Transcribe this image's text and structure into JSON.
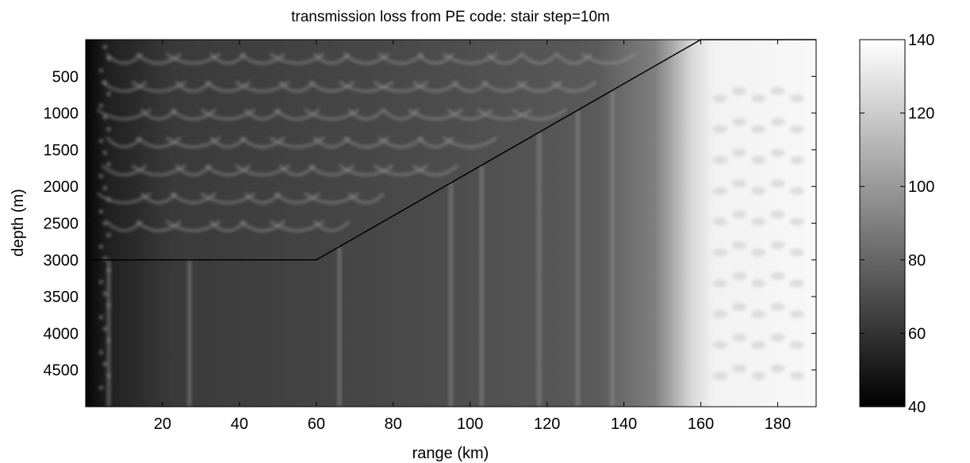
{
  "chart_data": {
    "type": "heatmap",
    "title": "transmission loss from PE code: stair step=10m",
    "xlabel": "range (km)",
    "ylabel": "depth (m)",
    "xlim": [
      0,
      190
    ],
    "ylim": [
      0,
      5000
    ],
    "y_reversed": true,
    "x_ticks": [
      20,
      40,
      60,
      80,
      100,
      120,
      140,
      160,
      180
    ],
    "y_ticks": [
      500,
      1000,
      1500,
      2000,
      2500,
      3000,
      3500,
      4000,
      4500
    ],
    "colormap": "gray",
    "clim": [
      40,
      140
    ],
    "colorbar_ticks": [
      40,
      60,
      80,
      100,
      120,
      140
    ],
    "bathymetry": {
      "range_km": [
        0,
        60,
        160,
        190
      ],
      "depth_m": [
        3000,
        3000,
        0,
        0
      ]
    },
    "colors": {
      "line": "#000000",
      "axes": "#000000",
      "background": "#ffffff"
    }
  }
}
